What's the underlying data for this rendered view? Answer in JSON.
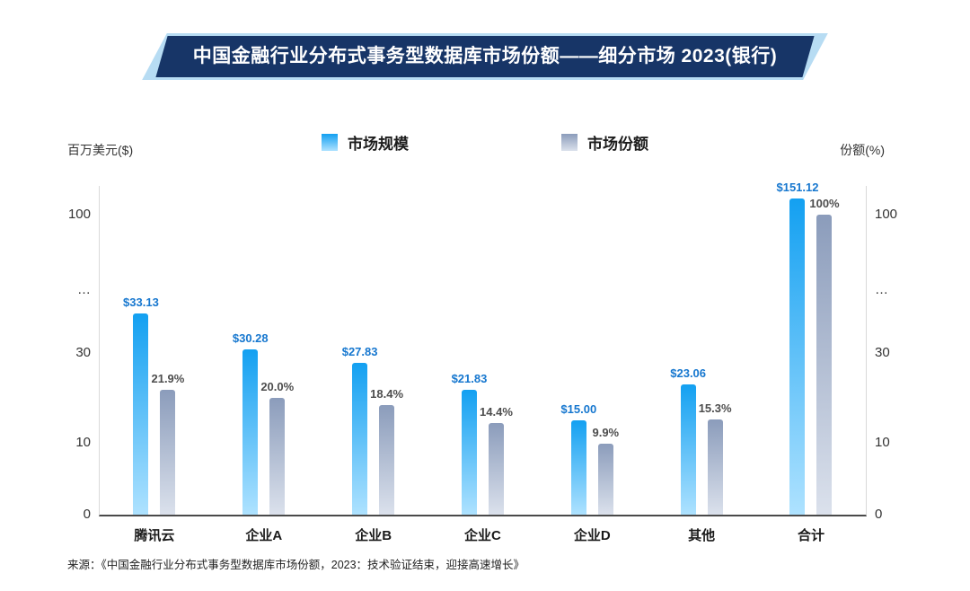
{
  "chart_data": {
    "type": "bar",
    "title": "中国金融行业分布式事务型数据库市场份额——细分市场 2023(银行)",
    "categories": [
      "腾讯云",
      "企业A",
      "企业B",
      "企业C",
      "企业D",
      "其他",
      "合计"
    ],
    "series": [
      {
        "name": "市场规模",
        "values": [
          33.13,
          30.28,
          27.83,
          21.83,
          15.0,
          23.06,
          151.12
        ],
        "labels": [
          "$33.13",
          "$30.28",
          "$27.83",
          "$21.83",
          "$15.00",
          "$23.06",
          "$151.12"
        ]
      },
      {
        "name": "市场份额",
        "values": [
          21.9,
          20.0,
          18.4,
          14.4,
          9.9,
          15.3,
          100
        ],
        "labels": [
          "21.9%",
          "20.0%",
          "18.4%",
          "14.4%",
          "9.9%",
          "15.3%",
          "100%"
        ]
      }
    ],
    "y_axis": {
      "left_label": "百万美元($)",
      "right_label": "份额(%)",
      "ticks": [
        "0",
        "10",
        "30",
        "…",
        "100"
      ],
      "broken_axis": true,
      "range": [
        0,
        100
      ]
    },
    "legend_position": "top",
    "grid": false,
    "source": "来源：《中国金融行业分布式事务型数据库市场份额，2023：技术验证结束，迎接高速增长》"
  },
  "colors": {
    "title_bg": "#173567",
    "title_accent": "#b7dcf3",
    "bar_blue_top": "#13a0f1",
    "bar_blue_bottom": "#aee2ff",
    "bar_gray_top": "#8b9cbb",
    "bar_gray_bottom": "#dbe1ec",
    "value_label": "#1677cf",
    "share_label": "#4d4d4d",
    "axis_line": "#4a4a4a",
    "plot_border": "#d9d9d9"
  }
}
